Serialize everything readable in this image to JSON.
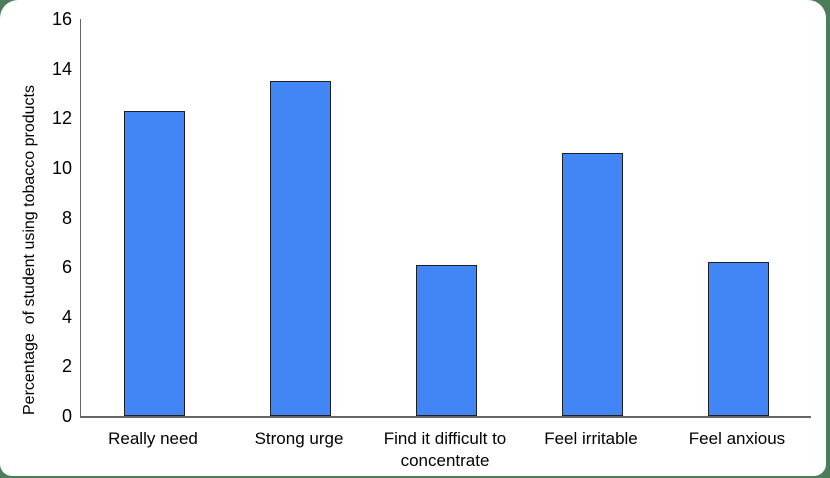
{
  "background_color": "#4d7c5a",
  "card_color": "#ffffff",
  "chart_data": {
    "type": "bar",
    "categories": [
      "Really need",
      "Strong urge",
      "Find it difficult to concentrate",
      "Feel irritable",
      "Feel anxious"
    ],
    "values": [
      12.3,
      13.5,
      6.1,
      10.6,
      6.2
    ],
    "title": "",
    "xlabel": "",
    "ylabel": "Percentage  of student using tobacco products",
    "ylim": [
      0,
      16
    ],
    "yticks": [
      0,
      2,
      4,
      6,
      8,
      10,
      12,
      14,
      16
    ],
    "bar_color": "#4285f4",
    "bar_border_color": "#1f1f1f",
    "axis_color": "#666666",
    "grid": false,
    "legend": "none"
  }
}
